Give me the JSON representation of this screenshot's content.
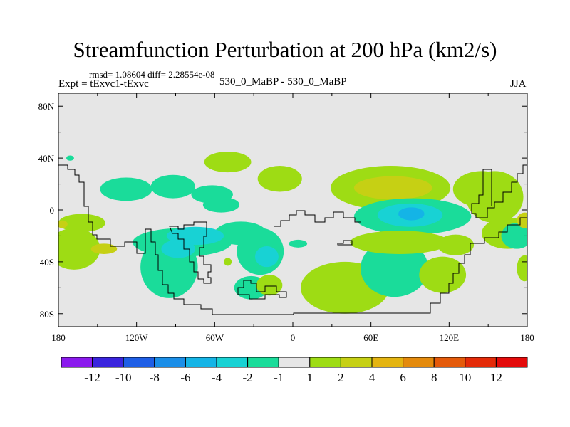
{
  "chart_data": {
    "type": "heatmap",
    "title": "Streamfunction Perturbation at 200 hPa (km2/s)",
    "left_annotation_1": "rmsd= 1.08604 diff= 2.28554e-08",
    "left_annotation_2": "Expt = tExvc1-tExvc",
    "center_annotation": "530_0_MaBP - 530_0_MaBP",
    "right_annotation": "JJA",
    "x_axis": {
      "range": [
        -180,
        180
      ],
      "ticks": [
        {
          "value": -180,
          "label": "180"
        },
        {
          "value": -120,
          "label": "120W"
        },
        {
          "value": -60,
          "label": "60W"
        },
        {
          "value": 0,
          "label": "0"
        },
        {
          "value": 60,
          "label": "60E"
        },
        {
          "value": 120,
          "label": "120E"
        },
        {
          "value": 180,
          "label": "180"
        }
      ]
    },
    "y_axis": {
      "range": [
        -90,
        90
      ],
      "ticks": [
        {
          "value": 80,
          "label": "80N"
        },
        {
          "value": 40,
          "label": "40N"
        },
        {
          "value": 0,
          "label": "0"
        },
        {
          "value": -40,
          "label": "40S"
        },
        {
          "value": -80,
          "label": "80S"
        }
      ]
    },
    "colorbar": {
      "labels": [
        "-12",
        "-10",
        "-8",
        "-6",
        "-4",
        "-2",
        "-1",
        "1",
        "2",
        "4",
        "6",
        "8",
        "10",
        "12"
      ],
      "colors": [
        "#8b1aee",
        "#3a24de",
        "#1e5ee6",
        "#1a8ee8",
        "#14b4e6",
        "#18d2d4",
        "#1adc9a",
        "#e6e6e6",
        "#9edc14",
        "#c6d014",
        "#e4b410",
        "#e48a0c",
        "#e45a0a",
        "#e42a08",
        "#e40a0a"
      ]
    },
    "fields": [
      {
        "level": 1,
        "lon": 145,
        "lat": 16,
        "rx": 22,
        "ry": 14
      },
      {
        "level": 1,
        "lon": 155,
        "lat": 10,
        "rx": 22,
        "ry": 20
      },
      {
        "level": 1,
        "lon": 165,
        "lat": -18,
        "rx": 20,
        "ry": 12
      },
      {
        "level": -1,
        "lon": 172,
        "lat": -20,
        "rx": 12,
        "ry": 10
      },
      {
        "level": 1,
        "lon": 178,
        "lat": -45,
        "rx": 6,
        "ry": 10
      },
      {
        "level": 2,
        "lon": 178,
        "lat": -8,
        "rx": 6,
        "ry": 6
      },
      {
        "level": 1,
        "lon": -168,
        "lat": -30,
        "rx": 20,
        "ry": 16
      },
      {
        "level": 2,
        "lon": -145,
        "lat": -30,
        "rx": 10,
        "ry": 4
      },
      {
        "level": 1,
        "lon": -162,
        "lat": -10,
        "rx": 18,
        "ry": 7
      },
      {
        "level": 2,
        "lon": -177,
        "lat": -11,
        "rx": 4,
        "ry": 3
      },
      {
        "level": -1,
        "lon": -128,
        "lat": 16,
        "rx": 20,
        "ry": 9
      },
      {
        "level": -1,
        "lon": -92,
        "lat": 18,
        "rx": 17,
        "ry": 9
      },
      {
        "level": -1,
        "lon": -62,
        "lat": 12,
        "rx": 16,
        "ry": 7
      },
      {
        "level": -1,
        "lon": -55,
        "lat": 4,
        "rx": 14,
        "ry": 6
      },
      {
        "level": 1,
        "lon": -50,
        "lat": 37,
        "rx": 18,
        "ry": 8
      },
      {
        "level": 1,
        "lon": -10,
        "lat": 24,
        "rx": 17,
        "ry": 10
      },
      {
        "level": -1,
        "lon": -85,
        "lat": -25,
        "rx": 38,
        "ry": 11
      },
      {
        "level": -1,
        "lon": -95,
        "lat": -44,
        "rx": 22,
        "ry": 24
      },
      {
        "level": -1,
        "lon": -40,
        "lat": -18,
        "rx": 20,
        "ry": 9
      },
      {
        "level": -1,
        "lon": -25,
        "lat": -32,
        "rx": 18,
        "ry": 18
      },
      {
        "level": -1,
        "lon": -32,
        "lat": -60,
        "rx": 13,
        "ry": 9
      },
      {
        "level": -2,
        "lon": -75,
        "lat": -20,
        "rx": 22,
        "ry": 7
      },
      {
        "level": -2,
        "lon": -88,
        "lat": -30,
        "rx": 13,
        "ry": 7
      },
      {
        "level": -2,
        "lon": -20,
        "lat": -36,
        "rx": 9,
        "ry": 8
      },
      {
        "level": 1,
        "lon": -18,
        "lat": -58,
        "rx": 10,
        "ry": 8
      },
      {
        "level": 1,
        "lon": -50,
        "lat": -40,
        "rx": 3,
        "ry": 3
      },
      {
        "level": 1,
        "lon": 40,
        "lat": -60,
        "rx": 34,
        "ry": 20
      },
      {
        "level": -1,
        "lon": 78,
        "lat": -45,
        "rx": 26,
        "ry": 22
      },
      {
        "level": 1,
        "lon": 115,
        "lat": -50,
        "rx": 18,
        "ry": 14
      },
      {
        "level": 1,
        "lon": 75,
        "lat": 17,
        "rx": 46,
        "ry": 17
      },
      {
        "level": 2,
        "lon": 77,
        "lat": 17,
        "rx": 30,
        "ry": 9
      },
      {
        "level": -1,
        "lon": 92,
        "lat": -5,
        "rx": 45,
        "ry": 14
      },
      {
        "level": -2,
        "lon": 90,
        "lat": -4,
        "rx": 25,
        "ry": 9
      },
      {
        "level": -4,
        "lon": 91,
        "lat": -3,
        "rx": 10,
        "ry": 5
      },
      {
        "level": 1,
        "lon": 82,
        "lat": -25,
        "rx": 38,
        "ry": 9
      },
      {
        "level": 1,
        "lon": 125,
        "lat": -27,
        "rx": 14,
        "ry": 8
      },
      {
        "level": -1,
        "lon": 4,
        "lat": -26,
        "rx": 7,
        "ry": 3
      },
      {
        "level": -1,
        "lon": -171,
        "lat": 40,
        "rx": 3,
        "ry": 2
      }
    ]
  }
}
